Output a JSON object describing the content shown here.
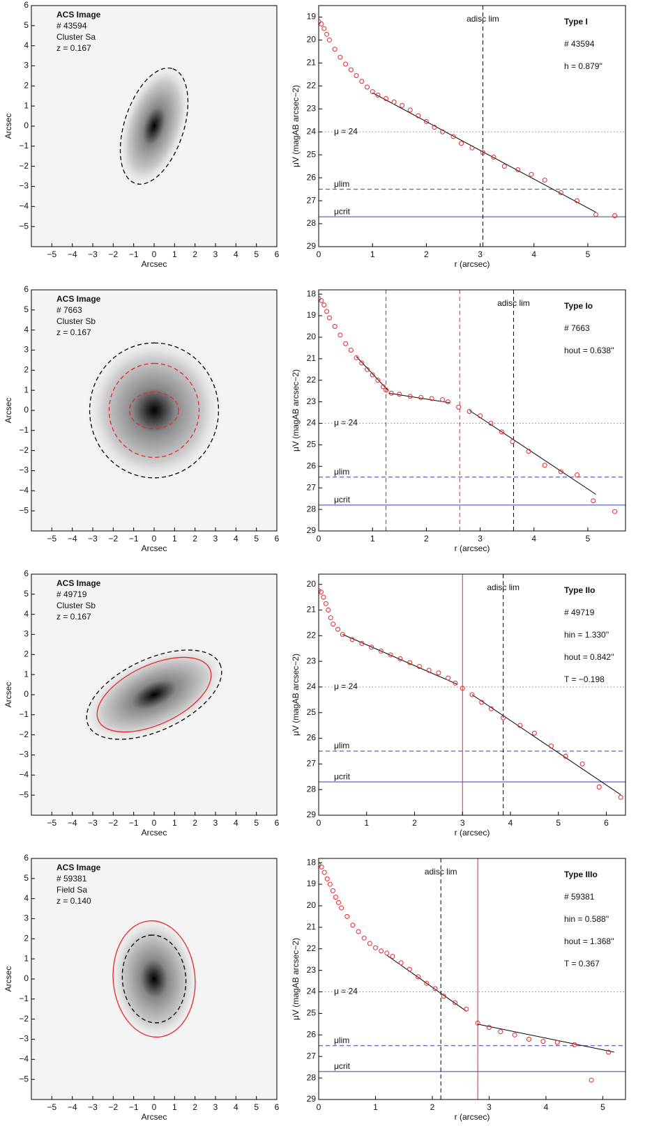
{
  "chart_data": [
    {
      "type": "image",
      "xlabel": "Arcsec",
      "ylabel": "Arcsec",
      "labels": [
        "ACS Image",
        "# 43594",
        "Cluster Sa",
        "z = 0.167"
      ],
      "xlim": [
        -6,
        6
      ],
      "ylim": [
        -6,
        6
      ],
      "xticks": [
        {
          "value": -5,
          "label": "−5"
        },
        {
          "value": -4,
          "label": "−4"
        },
        {
          "value": -3,
          "label": "−3"
        },
        {
          "value": -2,
          "label": "−2"
        },
        {
          "value": -1,
          "label": "−1"
        },
        0,
        1,
        2,
        3,
        4,
        5,
        6
      ],
      "yticks": [
        {
          "value": -5,
          "label": "−5"
        },
        {
          "value": -4,
          "label": "−4"
        },
        {
          "value": -3,
          "label": "−3"
        },
        {
          "value": -2,
          "label": "−2"
        },
        {
          "value": -1,
          "label": "−1"
        },
        0,
        1,
        2,
        3,
        4,
        5,
        6
      ],
      "ellipses": [
        {
          "a": 2.95,
          "b": 1.45,
          "angle": 72,
          "color": "#000000",
          "style": "dashed"
        }
      ]
    },
    {
      "type": "profile",
      "xlabel": "r (arcsec)",
      "ylabel": "μV (magAB arcsec−2)",
      "color": "#e8262a",
      "annotations": [
        "Type I",
        "# 43594",
        "h = 0.879''"
      ],
      "x": [
        0,
        0.05,
        0.1,
        0.15,
        0.2,
        0.3,
        0.4,
        0.5,
        0.6,
        0.7,
        0.8,
        0.9,
        1.0,
        1.1,
        1.25,
        1.4,
        1.55,
        1.7,
        1.85,
        2.0,
        2.15,
        2.3,
        2.5,
        2.65,
        2.85,
        3.05,
        3.25,
        3.45,
        3.7,
        3.95,
        4.2,
        4.5,
        4.8,
        5.15,
        5.5
      ],
      "values": [
        19.2,
        19.3,
        19.5,
        19.75,
        20,
        20.4,
        20.75,
        21.05,
        21.3,
        21.55,
        21.8,
        22.05,
        22.25,
        22.4,
        22.55,
        22.7,
        22.85,
        23.05,
        23.3,
        23.55,
        23.8,
        24.0,
        24.2,
        24.5,
        24.7,
        24.9,
        25.1,
        25.5,
        25.65,
        25.85,
        26.1,
        26.65,
        27.0,
        27.6,
        27.65
      ],
      "xlim": [
        0,
        5.7
      ],
      "ylim": [
        29,
        18.5
      ],
      "xticks": [
        0,
        1,
        2,
        3,
        4,
        5
      ],
      "yticks": [
        19,
        20,
        21,
        22,
        23,
        24,
        25,
        26,
        27,
        28,
        29
      ],
      "hlines": [
        {
          "label": "μ = 24",
          "value": 24,
          "style": "dotted",
          "color": "#888888"
        },
        {
          "label": "μlim",
          "value": 26.5,
          "style": "dashed",
          "color": "#3a3ab0"
        },
        {
          "label": "μcrit",
          "value": 27.7,
          "style": "solid",
          "color": "#3a3ab0"
        }
      ],
      "vlines": [
        {
          "label": "adisc lim",
          "value": 3.05,
          "style": "dashed",
          "color": "#000000"
        }
      ],
      "fits": [
        {
          "x": [
            1.0,
            5.15
          ],
          "y": [
            22.3,
            27.5
          ]
        }
      ]
    },
    {
      "type": "image",
      "xlabel": "Arcsec",
      "ylabel": "Arcsec",
      "labels": [
        "ACS Image",
        "# 7663",
        "Cluster Sb",
        "z = 0.167"
      ],
      "xlim": [
        -6,
        6
      ],
      "ylim": [
        -6,
        6
      ],
      "xticks": [
        {
          "value": -5,
          "label": "−5"
        },
        {
          "value": -4,
          "label": "−4"
        },
        {
          "value": -3,
          "label": "−3"
        },
        {
          "value": -2,
          "label": "−2"
        },
        {
          "value": -1,
          "label": "−1"
        },
        0,
        1,
        2,
        3,
        4,
        5,
        6
      ],
      "yticks": [
        {
          "value": -5,
          "label": "−5"
        },
        {
          "value": -4,
          "label": "−4"
        },
        {
          "value": -3,
          "label": "−3"
        },
        {
          "value": -2,
          "label": "−2"
        },
        {
          "value": -1,
          "label": "−1"
        },
        0,
        1,
        2,
        3,
        4,
        5,
        6
      ],
      "ellipses": [
        {
          "a": 3.3,
          "b": 3.15,
          "angle": 90,
          "color": "#000000",
          "style": "dashed"
        },
        {
          "a": 2.3,
          "b": 2.2,
          "angle": 90,
          "color": "#e8262a",
          "style": "dashed"
        },
        {
          "a": 1.2,
          "b": 0.9,
          "angle": 0,
          "color": "#e8262a",
          "style": "dashed"
        }
      ]
    },
    {
      "type": "profile",
      "xlabel": "r (arcsec)",
      "ylabel": "μV (magAB arcsec−2)",
      "color": "#e8262a",
      "annotations": [
        "Type Io",
        "# 7663",
        "hout = 0.638''"
      ],
      "x": [
        0,
        0.05,
        0.1,
        0.15,
        0.2,
        0.3,
        0.4,
        0.5,
        0.6,
        0.7,
        0.8,
        0.9,
        1.0,
        1.1,
        1.2,
        1.25,
        1.35,
        1.5,
        1.7,
        1.9,
        2.1,
        2.3,
        2.4,
        2.6,
        2.8,
        3.0,
        3.2,
        3.4,
        3.6,
        3.9,
        4.2,
        4.5,
        4.8,
        5.1,
        5.5
      ],
      "values": [
        18.2,
        18.3,
        18.5,
        18.8,
        19.1,
        19.5,
        19.9,
        20.3,
        20.6,
        20.95,
        21.2,
        21.5,
        21.75,
        22.0,
        22.3,
        22.45,
        22.6,
        22.65,
        22.75,
        22.8,
        22.85,
        22.9,
        23.0,
        23.25,
        23.45,
        23.65,
        24.0,
        24.4,
        24.85,
        25.3,
        25.95,
        26.25,
        26.4,
        27.6,
        28.1
      ],
      "xlim": [
        0,
        5.7
      ],
      "ylim": [
        29,
        17.8
      ],
      "xticks": [
        0,
        1,
        2,
        3,
        4,
        5
      ],
      "yticks": [
        18,
        19,
        20,
        21,
        22,
        23,
        24,
        25,
        26,
        27,
        28,
        29
      ],
      "hlines": [
        {
          "label": "μ = 24",
          "value": 24,
          "style": "dotted",
          "color": "#888888"
        },
        {
          "label": "μlim",
          "value": 26.5,
          "style": "dashed",
          "color": "#3a3ab0"
        },
        {
          "label": "μcrit",
          "value": 27.8,
          "style": "solid",
          "color": "#3a3ab0"
        }
      ],
      "vlines": [
        {
          "label": "adisc lim",
          "value": 3.62,
          "style": "dashed",
          "color": "#000000"
        },
        {
          "value": 1.25,
          "style": "dashed",
          "color": "#e8262a"
        },
        {
          "value": 2.62,
          "style": "dashed",
          "color": "#e8262a"
        }
      ],
      "fits": [
        {
          "x": [
            0.7,
            1.3
          ],
          "y": [
            20.9,
            22.5
          ]
        },
        {
          "x": [
            1.3,
            2.45
          ],
          "y": [
            22.6,
            23.05
          ]
        },
        {
          "x": [
            2.8,
            5.15
          ],
          "y": [
            23.4,
            27.3
          ]
        }
      ]
    },
    {
      "type": "image",
      "xlabel": "Arcsec",
      "ylabel": "Arcsec",
      "labels": [
        "ACS Image",
        "# 49719",
        "Cluster Sb",
        "z = 0.167"
      ],
      "xlim": [
        -6,
        6
      ],
      "ylim": [
        -6,
        6
      ],
      "xticks": [
        {
          "value": -5,
          "label": "−5"
        },
        {
          "value": -4,
          "label": "−4"
        },
        {
          "value": -3,
          "label": "−3"
        },
        {
          "value": -2,
          "label": "−2"
        },
        {
          "value": -1,
          "label": "−1"
        },
        0,
        1,
        2,
        3,
        4,
        5,
        6
      ],
      "yticks": [
        {
          "value": -5,
          "label": "−5"
        },
        {
          "value": -4,
          "label": "−4"
        },
        {
          "value": -3,
          "label": "−3"
        },
        {
          "value": -2,
          "label": "−2"
        },
        {
          "value": -1,
          "label": "−1"
        },
        0,
        1,
        2,
        3,
        4,
        5,
        6
      ],
      "ellipses": [
        {
          "a": 3.55,
          "b": 1.75,
          "angle": 25,
          "color": "#000000",
          "style": "dashed"
        },
        {
          "a": 3.0,
          "b": 1.45,
          "angle": 25,
          "color": "#e8262a",
          "style": "solid"
        }
      ]
    },
    {
      "type": "profile",
      "xlabel": "r (arcsec)",
      "ylabel": "μV (magAB arcsec−2)",
      "color": "#e8262a",
      "annotations": [
        "Type IIo",
        "# 49719",
        "hin = 1.330''",
        "hout = 0.842''",
        "T = −0.198"
      ],
      "x": [
        0,
        0.05,
        0.1,
        0.15,
        0.2,
        0.25,
        0.3,
        0.4,
        0.5,
        0.7,
        0.9,
        1.1,
        1.3,
        1.5,
        1.7,
        1.9,
        2.1,
        2.3,
        2.5,
        2.7,
        2.85,
        3.0,
        3.2,
        3.4,
        3.6,
        3.85,
        4.2,
        4.5,
        4.85,
        5.15,
        5.5,
        5.85,
        6.3
      ],
      "values": [
        20.25,
        20.3,
        20.5,
        20.75,
        21.0,
        21.3,
        21.55,
        21.75,
        21.95,
        22.15,
        22.3,
        22.45,
        22.6,
        22.75,
        22.9,
        23.05,
        23.2,
        23.35,
        23.45,
        23.65,
        23.85,
        24.05,
        24.3,
        24.6,
        24.85,
        25.2,
        25.5,
        25.8,
        26.3,
        26.7,
        27.0,
        27.9,
        28.3
      ],
      "xlim": [
        0,
        6.4
      ],
      "ylim": [
        29,
        19.6
      ],
      "xticks": [
        0,
        1,
        2,
        3,
        4,
        5,
        6
      ],
      "yticks": [
        20,
        21,
        22,
        23,
        24,
        25,
        26,
        27,
        28,
        29
      ],
      "hlines": [
        {
          "label": "μ = 24",
          "value": 24,
          "style": "dotted",
          "color": "#888888"
        },
        {
          "label": "μlim",
          "value": 26.5,
          "style": "dashed",
          "color": "#3a3ab0"
        },
        {
          "label": "μcrit",
          "value": 27.7,
          "style": "solid",
          "color": "#3a3ab0"
        }
      ],
      "vlines": [
        {
          "label": "adisc lim",
          "value": 3.85,
          "style": "dashed",
          "color": "#000000"
        },
        {
          "value": 3.0,
          "style": "solid",
          "color": "#e8262a"
        }
      ],
      "fits": [
        {
          "x": [
            0.5,
            2.9
          ],
          "y": [
            21.95,
            23.9
          ]
        },
        {
          "x": [
            3.2,
            6.3
          ],
          "y": [
            24.3,
            28.2
          ]
        }
      ]
    },
    {
      "type": "image",
      "xlabel": "Arcsec",
      "ylabel": "Arcsec",
      "labels": [
        "ACS Image",
        "# 59381",
        "Field Sa",
        "z = 0.140"
      ],
      "xlim": [
        -6,
        6
      ],
      "ylim": [
        -6,
        6
      ],
      "xticks": [
        {
          "value": -5,
          "label": "−5"
        },
        {
          "value": -4,
          "label": "−4"
        },
        {
          "value": -3,
          "label": "−3"
        },
        {
          "value": -2,
          "label": "−2"
        },
        {
          "value": -1,
          "label": "−1"
        },
        0,
        1,
        2,
        3,
        4,
        5,
        6
      ],
      "yticks": [
        {
          "value": -5,
          "label": "−5"
        },
        {
          "value": -4,
          "label": "−4"
        },
        {
          "value": -3,
          "label": "−3"
        },
        {
          "value": -2,
          "label": "−2"
        },
        {
          "value": -1,
          "label": "−1"
        },
        0,
        1,
        2,
        3,
        4,
        5,
        6
      ],
      "ellipses": [
        {
          "a": 2.85,
          "b": 2.0,
          "angle": 95,
          "color": "#e8262a",
          "style": "solid"
        },
        {
          "a": 2.15,
          "b": 1.55,
          "angle": 95,
          "color": "#000000",
          "style": "dashed"
        }
      ]
    },
    {
      "type": "profile",
      "xlabel": "r (arcsec)",
      "ylabel": "μV (magAB arcsec−2)",
      "color": "#e8262a",
      "annotations": [
        "Type IIIo",
        "# 59381",
        "hin = 0.588''",
        "hout = 1.368''",
        "T = 0.367"
      ],
      "x": [
        0,
        0.05,
        0.1,
        0.15,
        0.2,
        0.25,
        0.3,
        0.35,
        0.4,
        0.5,
        0.6,
        0.7,
        0.8,
        0.9,
        1.0,
        1.1,
        1.2,
        1.3,
        1.45,
        1.6,
        1.75,
        1.9,
        2.05,
        2.2,
        2.4,
        2.6,
        2.8,
        3.0,
        3.2,
        3.45,
        3.7,
        3.95,
        4.2,
        4.5,
        4.8,
        5.1
      ],
      "values": [
        18.1,
        18.2,
        18.45,
        18.75,
        19.0,
        19.3,
        19.6,
        19.85,
        20.1,
        20.5,
        20.9,
        21.2,
        21.5,
        21.75,
        21.95,
        22.1,
        22.2,
        22.35,
        22.65,
        22.95,
        23.3,
        23.6,
        23.85,
        24.2,
        24.5,
        24.8,
        25.45,
        25.65,
        25.85,
        26.0,
        26.2,
        26.3,
        26.35,
        26.45,
        28.1,
        26.8
      ],
      "xlim": [
        0,
        5.4
      ],
      "ylim": [
        29,
        17.8
      ],
      "xticks": [
        0,
        1,
        2,
        3,
        4,
        5
      ],
      "yticks": [
        18,
        19,
        20,
        21,
        22,
        23,
        24,
        25,
        26,
        27,
        28,
        29
      ],
      "hlines": [
        {
          "label": "μ = 24",
          "value": 24,
          "style": "dotted",
          "color": "#888888"
        },
        {
          "label": "μlim",
          "value": 26.5,
          "style": "dashed",
          "color": "#3a3ab0"
        },
        {
          "label": "μcrit",
          "value": 27.7,
          "style": "solid",
          "color": "#3a3ab0"
        }
      ],
      "vlines": [
        {
          "label": "adisc lim",
          "value": 2.15,
          "style": "dashed",
          "color": "#000000"
        },
        {
          "value": 2.8,
          "style": "solid",
          "color": "#e8262a"
        }
      ],
      "fits": [
        {
          "x": [
            1.2,
            2.6
          ],
          "y": [
            22.3,
            24.9
          ]
        },
        {
          "x": [
            2.8,
            5.2
          ],
          "y": [
            25.5,
            26.8
          ]
        }
      ]
    }
  ]
}
